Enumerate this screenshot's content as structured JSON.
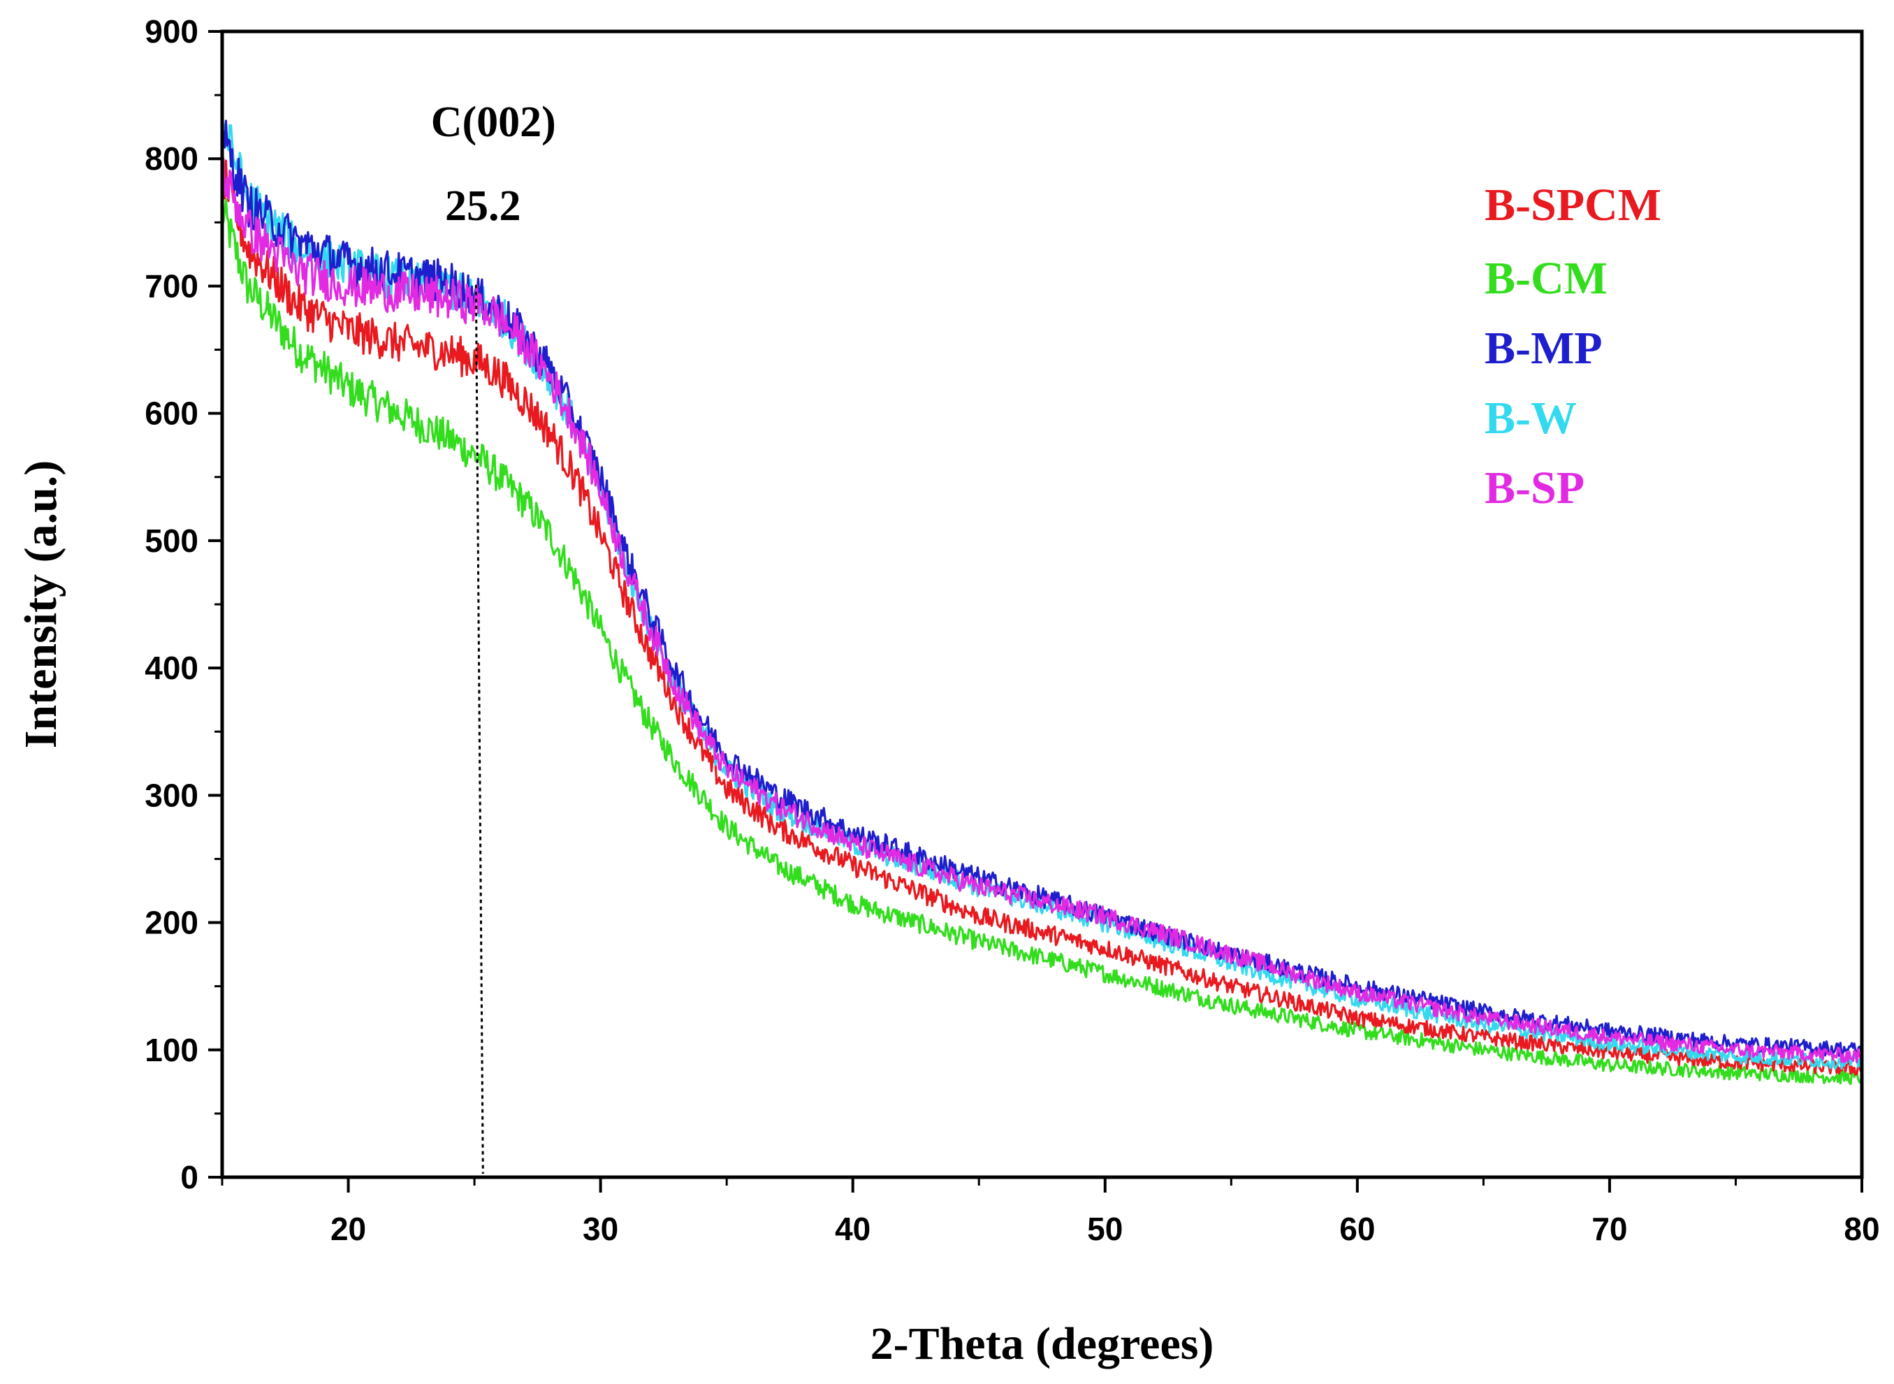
{
  "chart_data": {
    "type": "line",
    "title": "",
    "xlabel": "2-Theta (degrees)",
    "ylabel": "Intensity (a.u.)",
    "xlim": [
      15,
      80
    ],
    "ylim": [
      0,
      900
    ],
    "xticks": [
      20,
      30,
      40,
      50,
      60,
      70,
      80
    ],
    "yticks": [
      0,
      100,
      200,
      300,
      400,
      500,
      600,
      700,
      800,
      900
    ],
    "grid": false,
    "legend_position": "top-right",
    "annotations": {
      "peak_label": "C(002)",
      "peak_value": "25.2",
      "peak_x": 25.2
    },
    "series": [
      {
        "name": "B-SPCM",
        "color": "#e8191f",
        "x": [
          15,
          16,
          18,
          20,
          22,
          24,
          25.2,
          26,
          27,
          28,
          29,
          30,
          31,
          32,
          33,
          34,
          35,
          37,
          40,
          45,
          50,
          55,
          60,
          65,
          70,
          75,
          80
        ],
        "y": [
          790,
          730,
          685,
          665,
          655,
          648,
          640,
          630,
          610,
          585,
          550,
          505,
          455,
          410,
          370,
          335,
          305,
          275,
          245,
          205,
          180,
          150,
          125,
          110,
          98,
          90,
          85
        ]
      },
      {
        "name": "B-CM",
        "color": "#33dd1e",
        "x": [
          15,
          16,
          18,
          20,
          22,
          24,
          25.2,
          26,
          27,
          28,
          29,
          30,
          31,
          32,
          33,
          34,
          35,
          37,
          40,
          45,
          50,
          55,
          60,
          65,
          70,
          75,
          80
        ],
        "y": [
          760,
          700,
          650,
          620,
          600,
          580,
          565,
          550,
          530,
          505,
          470,
          430,
          390,
          355,
          325,
          300,
          275,
          245,
          215,
          185,
          160,
          135,
          115,
          100,
          88,
          82,
          78
        ]
      },
      {
        "name": "B-MP",
        "color": "#1e1ecc",
        "x": [
          15,
          16,
          18,
          20,
          22,
          24,
          25.2,
          26,
          27,
          28,
          29,
          30,
          31,
          32,
          33,
          34,
          35,
          37,
          40,
          45,
          50,
          55,
          60,
          65,
          70,
          75,
          80
        ],
        "y": [
          820,
          765,
          735,
          718,
          710,
          703,
          690,
          680,
          660,
          635,
          595,
          550,
          490,
          440,
          395,
          360,
          330,
          300,
          270,
          235,
          205,
          175,
          150,
          130,
          115,
          105,
          100
        ]
      },
      {
        "name": "B-W",
        "color": "#33d9ee",
        "x": [
          15,
          16,
          18,
          20,
          22,
          24,
          25.2,
          26,
          27,
          28,
          29,
          30,
          31,
          32,
          33,
          34,
          35,
          37,
          40,
          45,
          50,
          55,
          60,
          65,
          70,
          75,
          80
        ],
        "y": [
          830,
          770,
          730,
          715,
          705,
          698,
          688,
          678,
          655,
          628,
          590,
          540,
          480,
          430,
          385,
          350,
          320,
          290,
          262,
          228,
          200,
          168,
          140,
          120,
          105,
          95,
          90
        ]
      },
      {
        "name": "B-SP",
        "color": "#e22ae2",
        "x": [
          15,
          16,
          18,
          20,
          22,
          24,
          25.2,
          26,
          27,
          28,
          29,
          30,
          31,
          32,
          33,
          34,
          35,
          37,
          40,
          45,
          50,
          55,
          60,
          65,
          70,
          75,
          80
        ],
        "y": [
          790,
          745,
          712,
          700,
          695,
          690,
          685,
          675,
          655,
          628,
          590,
          540,
          480,
          430,
          385,
          350,
          320,
          292,
          262,
          228,
          205,
          175,
          145,
          125,
          110,
          100,
          95
        ]
      }
    ]
  }
}
